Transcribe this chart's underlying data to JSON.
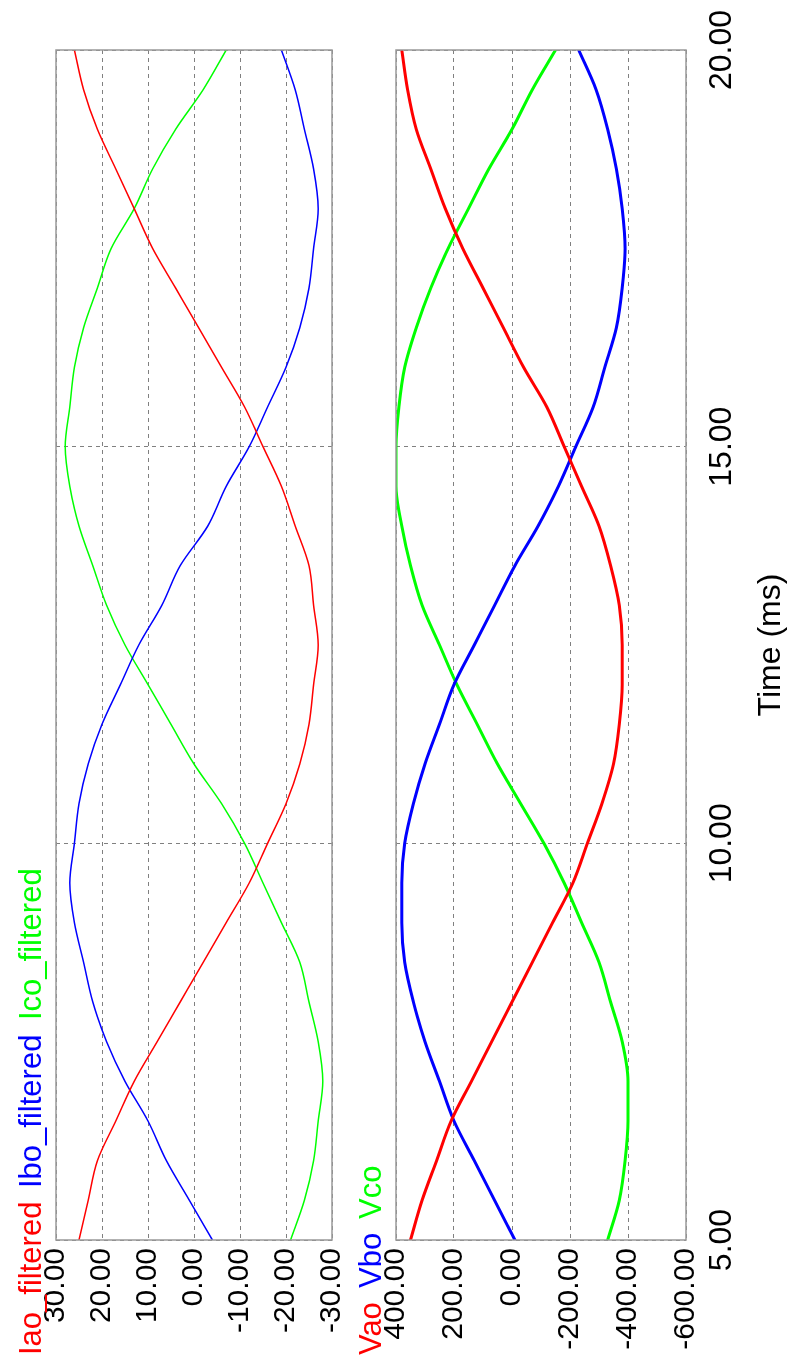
{
  "chart_data": [
    {
      "type": "line",
      "legend": "bottom left",
      "grid": true,
      "marker": "none",
      "line_style": "solid",
      "tick_labels": "x",
      "xlim": [
        30,
        -30
      ],
      "xticks": [
        {
          "value": 30,
          "label": "30.00"
        },
        {
          "value": 20,
          "label": "20.00"
        },
        {
          "value": 10,
          "label": "10.00"
        },
        {
          "value": 0,
          "label": "0.00"
        },
        {
          "value": -10,
          "label": "-10.00"
        },
        {
          "value": -20,
          "label": "-20.00"
        },
        {
          "value": -30,
          "label": "-30.00"
        }
      ],
      "ylim": [
        5,
        20
      ],
      "yticks": [
        {
          "value": 5,
          "label": null
        },
        {
          "value": 10,
          "label": null
        },
        {
          "value": 15,
          "label": null
        },
        {
          "value": 20,
          "label": null
        }
      ],
      "series": [
        {
          "name": "Iao_filtered",
          "color": "#ff0000",
          "x": [
            25,
            23,
            21,
            17,
            13,
            8,
            3,
            -2,
            -7,
            -12,
            -16,
            -20,
            -23,
            -25,
            -26,
            -27,
            -26,
            -25,
            -22,
            -19,
            -15,
            -11,
            -6,
            -1,
            4,
            9,
            13,
            17,
            21,
            24,
            26
          ],
          "values": [
            5,
            5.5,
            6,
            6.5,
            7,
            7.5,
            8,
            8.5,
            9,
            9.5,
            10,
            10.5,
            11,
            11.5,
            12,
            12.5,
            13,
            13.5,
            14,
            14.5,
            15,
            15.5,
            16,
            16.5,
            17,
            17.5,
            18,
            18.5,
            19,
            19.5,
            20
          ]
        },
        {
          "name": "Ibo_filtered",
          "color": "#0000ff",
          "x": [
            -4,
            1,
            6,
            10,
            15,
            19,
            22,
            24,
            26,
            27,
            26,
            25,
            23,
            20,
            16,
            12,
            7,
            3,
            -3,
            -7,
            -12,
            -16,
            -20,
            -23,
            -25,
            -26,
            -27,
            -26,
            -24,
            -22,
            -19
          ],
          "values": [
            5,
            5.5,
            6,
            6.5,
            7,
            7.5,
            8,
            8.5,
            9,
            9.5,
            10,
            10.5,
            11,
            11.5,
            12,
            12.5,
            13,
            13.5,
            14,
            14.5,
            15,
            15.5,
            16,
            16.5,
            17,
            17.5,
            18,
            18.5,
            19,
            19.5,
            20
          ]
        },
        {
          "name": "Ico_filtered",
          "color": "#00ff00",
          "x": [
            -21,
            -24,
            -26,
            -27,
            -28,
            -27,
            -25,
            -23,
            -19,
            -15,
            -11,
            -6,
            0,
            5,
            10,
            15,
            19,
            22,
            25,
            27,
            28,
            27,
            26,
            24,
            21,
            18,
            13,
            9,
            4,
            -2,
            -7
          ],
          "values": [
            5,
            5.5,
            6,
            6.5,
            7,
            7.5,
            8,
            8.5,
            9,
            9.5,
            10,
            10.5,
            11,
            11.5,
            12,
            12.5,
            13,
            13.5,
            14,
            14.5,
            15,
            15.5,
            16,
            16.5,
            17,
            17.5,
            18,
            18.5,
            19,
            19.5,
            20
          ]
        }
      ]
    },
    {
      "type": "line",
      "legend": "bottom left",
      "grid": true,
      "marker": "none",
      "line_style": "solid",
      "ylabel": "Time (ms)",
      "xlim": [
        400,
        -600
      ],
      "xticks": [
        {
          "value": 400,
          "label": "400.00"
        },
        {
          "value": 200,
          "label": "200.00"
        },
        {
          "value": 0,
          "label": "0.00"
        },
        {
          "value": -200,
          "label": "-200.00"
        },
        {
          "value": -400,
          "label": "-400.00"
        },
        {
          "value": -600,
          "label": "-600.00"
        }
      ],
      "ylim": [
        5,
        20
      ],
      "yticks": [
        {
          "value": 5,
          "label": "5.00"
        },
        {
          "value": 10,
          "label": "10.00"
        },
        {
          "value": 15,
          "label": "15.00"
        },
        {
          "value": 20,
          "label": "20.00"
        }
      ],
      "series": [
        {
          "name": "Vao",
          "color": "#ff0000",
          "x": [
            350,
            310,
            260,
            210,
            140,
            70,
            0,
            -70,
            -140,
            -210,
            -260,
            -310,
            -350,
            -370,
            -380,
            -380,
            -370,
            -340,
            -300,
            -240,
            -180,
            -120,
            -40,
            30,
            100,
            170,
            230,
            280,
            330,
            360,
            380
          ],
          "values": [
            5,
            5.5,
            6,
            6.5,
            7,
            7.5,
            8,
            8.5,
            9,
            9.5,
            10,
            10.5,
            11,
            11.5,
            12,
            12.5,
            13,
            13.5,
            14,
            14.5,
            15,
            15.5,
            16,
            16.5,
            17,
            17.5,
            18,
            18.5,
            19,
            19.5,
            20
          ]
        },
        {
          "name": "Vbo",
          "color": "#0000ff",
          "x": [
            -10,
            60,
            130,
            200,
            250,
            300,
            340,
            370,
            380,
            380,
            370,
            340,
            300,
            250,
            200,
            130,
            60,
            -10,
            -90,
            -160,
            -220,
            -280,
            -320,
            -360,
            -380,
            -390,
            -380,
            -360,
            -330,
            -290,
            -230
          ],
          "values": [
            5,
            5.5,
            6,
            6.5,
            7,
            7.5,
            8,
            8.5,
            9,
            9.5,
            10,
            10.5,
            11,
            11.5,
            12,
            12.5,
            13,
            13.5,
            14,
            14.5,
            15,
            15.5,
            16,
            16.5,
            17,
            17.5,
            18,
            18.5,
            19,
            19.5,
            20
          ]
        },
        {
          "name": "Vco",
          "color": "#00ff00",
          "x": [
            -330,
            -370,
            -390,
            -400,
            -400,
            -380,
            -340,
            -300,
            -240,
            -180,
            -110,
            -30,
            50,
            120,
            190,
            250,
            310,
            350,
            380,
            400,
            400,
            390,
            370,
            330,
            280,
            220,
            150,
            80,
            0,
            -70,
            -150
          ],
          "values": [
            5,
            5.5,
            6,
            6.5,
            7,
            7.5,
            8,
            8.5,
            9,
            9.5,
            10,
            10.5,
            11,
            11.5,
            12,
            12.5,
            13,
            13.5,
            14,
            14.5,
            15,
            15.5,
            16,
            16.5,
            17,
            17.5,
            18,
            18.5,
            19,
            19.5,
            20
          ]
        }
      ]
    }
  ]
}
